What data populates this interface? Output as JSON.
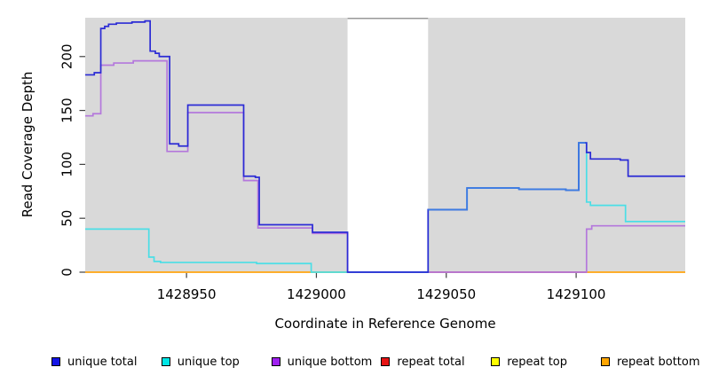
{
  "figure": {
    "xlabel": "Coordinate in Reference Genome",
    "ylabel": "Read Coverage Depth"
  },
  "chart_data": {
    "type": "line",
    "style": "step",
    "title": "",
    "xlabel": "Coordinate in Reference Genome",
    "ylabel": "Read Coverage Depth",
    "xlim": [
      1428911,
      1429142
    ],
    "ylim": [
      0,
      236
    ],
    "x_ticks": [
      1428950,
      1429000,
      1429050,
      1429100
    ],
    "y_ticks": [
      0,
      50,
      100,
      150,
      200
    ],
    "grid": false,
    "legend_position": "bottom",
    "plot_bg_color": "#D9D9D9",
    "gap_border_color": "#999999",
    "tick_color": "#404040",
    "no_data_gap": {
      "from": 1429012,
      "to": 1429043
    },
    "series": [
      {
        "name": "repeat top",
        "color": "#F2F20F",
        "steps": [
          [
            1428911,
            0
          ]
        ]
      },
      {
        "name": "repeat bottom",
        "color": "#FFA428",
        "steps": [
          [
            1428911,
            0
          ]
        ]
      },
      {
        "name": "repeat total",
        "color": "#D04F70",
        "visible_range": [
          1429043,
          1429104
        ],
        "steps": [
          [
            1428911,
            0
          ]
        ]
      },
      {
        "name": "unique bottom",
        "color": "#B478DC",
        "steps": [
          [
            1428911,
            145
          ],
          [
            1428914,
            147
          ],
          [
            1428917,
            192
          ],
          [
            1428922,
            194
          ],
          [
            1428929.5,
            196
          ],
          [
            1428942.5,
            112
          ],
          [
            1428950.5,
            148
          ],
          [
            1428972,
            85
          ],
          [
            1428977.5,
            41
          ],
          [
            1428998.5,
            36
          ],
          [
            1429012,
            0
          ],
          [
            1429104,
            40
          ],
          [
            1429106,
            43
          ]
        ]
      },
      {
        "name": "unique top",
        "color": "#4ADEE6",
        "steps": [
          [
            1428911,
            40
          ],
          [
            1428935.5,
            14
          ],
          [
            1428937.5,
            10
          ],
          [
            1428940,
            9
          ],
          [
            1428977,
            8
          ],
          [
            1428998,
            0
          ],
          [
            1429043,
            58
          ],
          [
            1429058,
            78
          ],
          [
            1429078,
            77
          ],
          [
            1429096,
            76
          ],
          [
            1429101,
            120
          ],
          [
            1429104,
            65
          ],
          [
            1429105.5,
            62
          ],
          [
            1429119,
            47
          ]
        ]
      },
      {
        "name": "unique total",
        "color": "#2B2BD5",
        "color_segments": [
          {
            "from": 1429043,
            "to": 1429103.5,
            "color": "#3D7CE2"
          }
        ],
        "steps": [
          [
            1428911,
            183
          ],
          [
            1428914.5,
            185
          ],
          [
            1428917,
            226
          ],
          [
            1428918.5,
            228
          ],
          [
            1428920,
            230
          ],
          [
            1428923,
            231
          ],
          [
            1428929,
            232
          ],
          [
            1428934,
            233
          ],
          [
            1428936,
            205
          ],
          [
            1428938,
            203
          ],
          [
            1428939.5,
            200
          ],
          [
            1428943.5,
            119
          ],
          [
            1428947,
            117
          ],
          [
            1428950.5,
            155
          ],
          [
            1428972,
            89
          ],
          [
            1428976.5,
            88
          ],
          [
            1428978,
            44
          ],
          [
            1428998.5,
            37
          ],
          [
            1429012,
            0
          ],
          [
            1429043,
            58
          ],
          [
            1429058,
            78
          ],
          [
            1429078,
            77
          ],
          [
            1429096,
            76
          ],
          [
            1429101,
            120
          ],
          [
            1429104,
            111
          ],
          [
            1429105.5,
            105
          ],
          [
            1429117,
            104
          ],
          [
            1429120,
            89
          ]
        ]
      }
    ],
    "legend": [
      {
        "label": "unique total",
        "color": "#1414E6"
      },
      {
        "label": "unique top",
        "color": "#00E6E6"
      },
      {
        "label": "unique bottom",
        "color": "#A020F0"
      },
      {
        "label": "repeat total",
        "color": "#E61414"
      },
      {
        "label": "repeat top",
        "color": "#FFFF00"
      },
      {
        "label": "repeat bottom",
        "color": "#FFA500"
      }
    ]
  }
}
